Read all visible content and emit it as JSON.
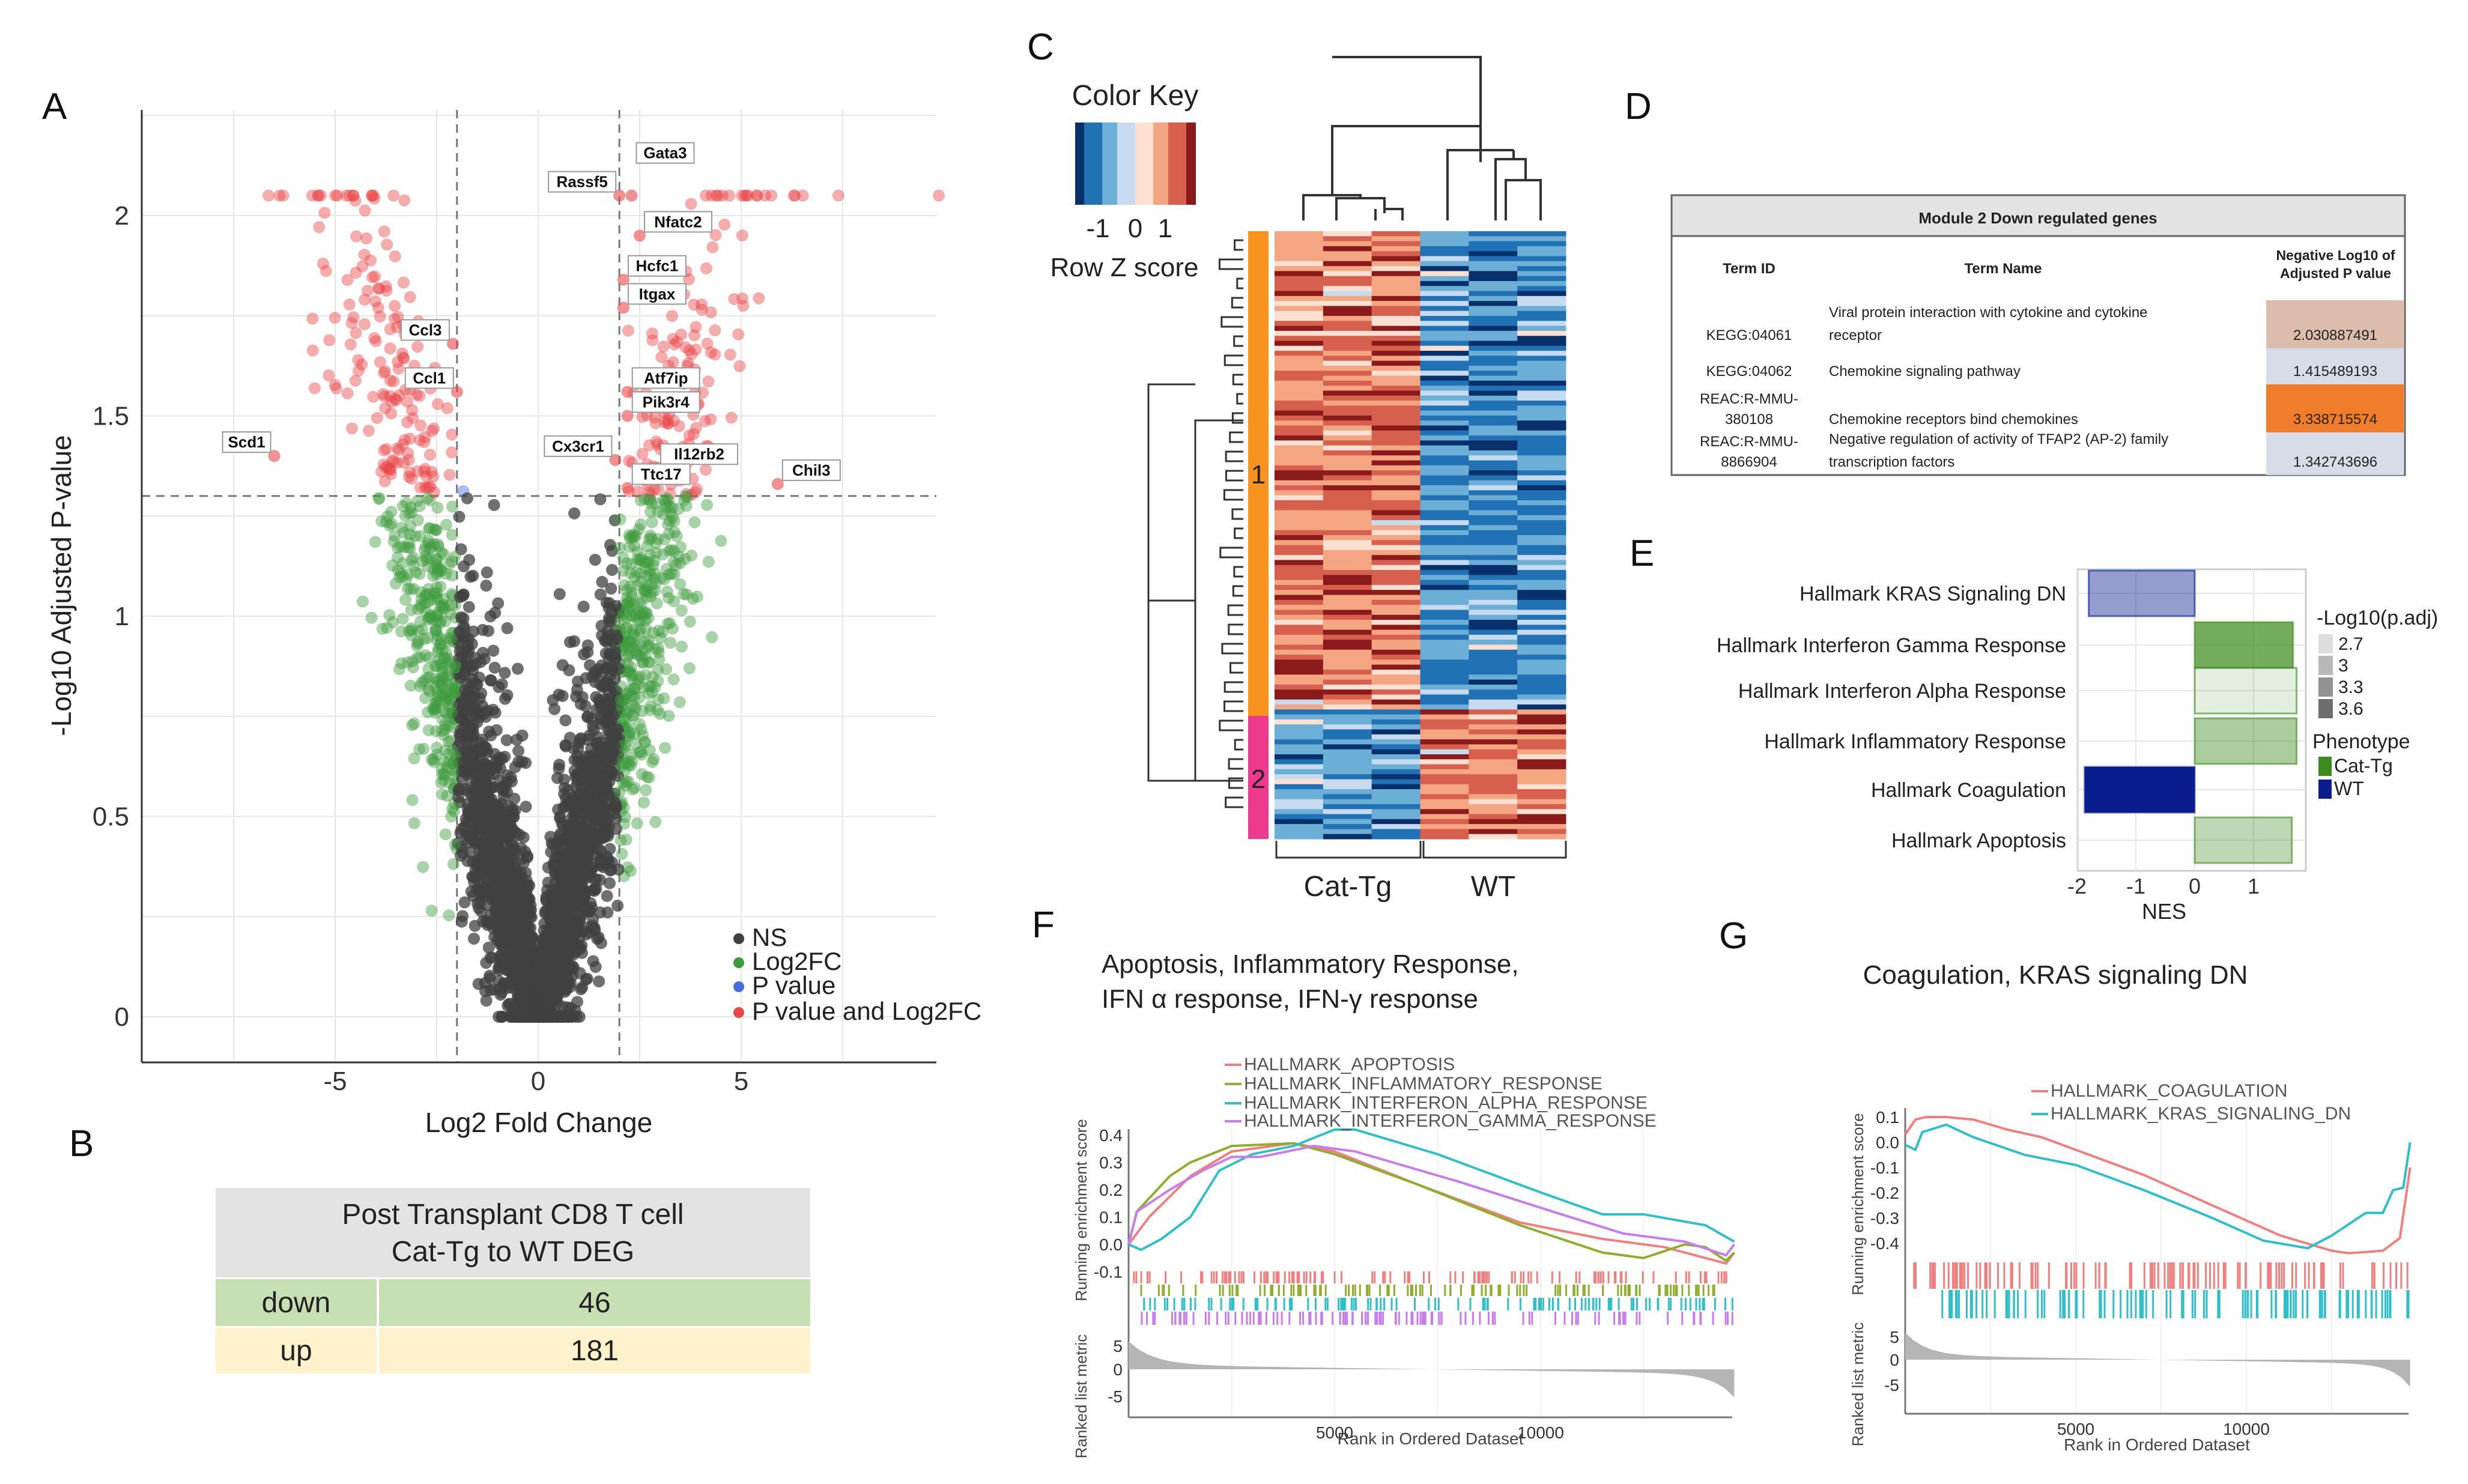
{
  "panel_labels": [
    "A",
    "B",
    "C",
    "D",
    "E",
    "F",
    "G"
  ],
  "chart_data": [
    {
      "id": "A",
      "type": "scatter",
      "title": "",
      "xlabel": "Log2 Fold Change",
      "ylabel": "-Log10 Adjusted P-value",
      "xlim": [
        -9.8,
        9.8
      ],
      "ylim": [
        -0.1,
        2.26
      ],
      "xticks": [
        "-5",
        "0",
        "5"
      ],
      "yticks": [
        "0",
        "0.5",
        "1",
        "1.5",
        "2"
      ],
      "thresholds": {
        "log2fc": 2,
        "neg_log10_padj": 1.3
      },
      "legend": {
        "position": "bottom-right",
        "entries": [
          {
            "label": "NS",
            "color": "#404040"
          },
          {
            "label": "Log2FC",
            "color": "#3f9b3f"
          },
          {
            "label": "P value",
            "color": "#4a6ae0"
          },
          {
            "label": "P value and Log2FC",
            "color": "#e8474a"
          }
        ]
      },
      "labeled_points": [
        {
          "gene": "Gata3",
          "x": 2.3,
          "y": 2.05
        },
        {
          "gene": "Rassf5",
          "x": 2.0,
          "y": 2.05
        },
        {
          "gene": "Nfatc2",
          "x": 2.5,
          "y": 1.95
        },
        {
          "gene": "Hcfc1",
          "x": 2.1,
          "y": 1.84
        },
        {
          "gene": "Itgax",
          "x": 2.1,
          "y": 1.77
        },
        {
          "gene": "Atf7ip",
          "x": 2.2,
          "y": 1.56
        },
        {
          "gene": "Pik3r4",
          "x": 2.2,
          "y": 1.5
        },
        {
          "gene": "Cx3cr1",
          "x": 1.9,
          "y": 1.39
        },
        {
          "gene": "Il12rb2",
          "x": 2.9,
          "y": 1.37
        },
        {
          "gene": "Ttc17",
          "x": 2.2,
          "y": 1.32
        },
        {
          "gene": "Chil3",
          "x": 5.9,
          "y": 1.33
        },
        {
          "gene": "Ccl3",
          "x": -2.1,
          "y": 1.68
        },
        {
          "gene": "Ccl1",
          "x": -2.0,
          "y": 1.56
        },
        {
          "gene": "Scd1",
          "x": -6.5,
          "y": 1.4
        }
      ]
    },
    {
      "id": "B",
      "type": "table",
      "title_lines": [
        "Post Transplant CD8 T cell",
        "Cat-Tg to WT DEG"
      ],
      "rows": [
        {
          "direction": "down",
          "count": "46",
          "color": "#c6e0b4"
        },
        {
          "direction": "up",
          "count": "181",
          "color": "#fff2cc"
        }
      ]
    },
    {
      "id": "C",
      "type": "heatmap",
      "color_key_title": "Color Key",
      "color_key_ticks": [
        "-1",
        "0",
        "1"
      ],
      "color_key_label": "Row Z score",
      "columns": [
        "Cat-Tg",
        "Cat-Tg",
        "Cat-Tg",
        "WT",
        "WT",
        "WT"
      ],
      "column_groups": [
        "Cat-Tg",
        "WT"
      ],
      "modules": [
        {
          "label": "1",
          "color": "#f7931e",
          "rows": 96,
          "pattern": "high in Cat-Tg, low in WT"
        },
        {
          "label": "2",
          "color": "#ec3a8f",
          "rows": 26,
          "pattern": "low in Cat-Tg, high in WT"
        }
      ]
    },
    {
      "id": "D",
      "type": "table",
      "title": "Module 2 Down regulated genes",
      "columns": [
        "Term ID",
        "Term Name",
        "Negative Log10 of Adjusted P value"
      ],
      "rows": [
        {
          "id_lines": [
            "KEGG:04061"
          ],
          "name_lines": [
            "Viral protein interaction with cytokine and cytokine",
            "receptor"
          ],
          "value": "2.030887491",
          "color": "#dcbcaa"
        },
        {
          "id_lines": [
            "KEGG:04062"
          ],
          "name_lines": [
            "Chemokine signaling pathway"
          ],
          "value": "1.415489193",
          "color": "#d7dce8"
        },
        {
          "id_lines": [
            "REAC:R-MMU-",
            "380108"
          ],
          "name_lines": [
            "Chemokine receptors bind chemokines"
          ],
          "value": "3.338715574",
          "color": "#ef7d2c"
        },
        {
          "id_lines": [
            "REAC:R-MMU-",
            "8866904"
          ],
          "name_lines": [
            "Negative regulation of activity of TFAP2 (AP-2) family",
            "transcription factors"
          ],
          "value": "1.342743696",
          "color": "#d7dce8"
        }
      ]
    },
    {
      "id": "E",
      "type": "bar",
      "orientation": "horizontal",
      "xlabel": "NES",
      "xlim": [
        -2,
        1.9
      ],
      "xticks": [
        "-2",
        "-1",
        "0",
        "1"
      ],
      "categories": [
        "Hallmark KRAS Signaling DN",
        "Hallmark Interferon Gamma Response",
        "Hallmark Interferon Alpha Response",
        "Hallmark Inflammatory Response",
        "Hallmark Coagulation",
        "Hallmark Apoptosis"
      ],
      "values": [
        -1.8,
        1.67,
        1.73,
        1.73,
        -1.87,
        1.65
      ],
      "neg_log10_padj": [
        3.0,
        3.3,
        2.7,
        3.0,
        3.6,
        2.9
      ],
      "phenotype": [
        "WT",
        "Cat-Tg",
        "Cat-Tg",
        "Cat-Tg",
        "WT",
        "Cat-Tg"
      ],
      "legend": {
        "size_title": "-Log10(p.adj)",
        "size_values": [
          "2.7",
          "3",
          "3.3",
          "3.6"
        ],
        "phenotype_title": "Phenotype",
        "phenotypes": [
          {
            "label": "Cat-Tg",
            "color": "#3d8b1f"
          },
          {
            "label": "WT",
            "color": "#0a1d8f"
          }
        ]
      }
    },
    {
      "id": "F",
      "type": "line",
      "title_lines": [
        "Apoptosis, Inflammatory Response,",
        "IFN α response, IFN-γ response"
      ],
      "ylabel": "Running enrichment score",
      "ylabel2": "Ranked list metric",
      "xlabel": "Rank in Ordered Dataset",
      "xlim": [
        0,
        14700
      ],
      "ylim": [
        -0.1,
        0.43
      ],
      "xticks": [
        "5000",
        "10000"
      ],
      "yticks": [
        "0.4",
        "0.3",
        "0.2",
        "0.1",
        "0.0",
        "-0.1"
      ],
      "yticks2": [
        "5",
        "0",
        "-5"
      ],
      "series": [
        {
          "name": "HALLMARK_APOPTOSIS",
          "color": "#f08080",
          "x": [
            0,
            500,
            1500,
            2500,
            4000,
            5000,
            7000,
            9500,
            11500,
            13000,
            14500,
            14700
          ],
          "y": [
            0,
            0.1,
            0.25,
            0.34,
            0.37,
            0.34,
            0.22,
            0.08,
            0.02,
            -0.01,
            -0.07,
            -0.03
          ]
        },
        {
          "name": "HALLMARK_INFLAMMATORY_RESPONSE",
          "color": "#8fae2e",
          "x": [
            0,
            200,
            1000,
            1500,
            2500,
            4000,
            5000,
            7000,
            9500,
            11500,
            12500,
            13500,
            14000,
            14500,
            14700
          ],
          "y": [
            0,
            0.12,
            0.25,
            0.3,
            0.36,
            0.37,
            0.33,
            0.22,
            0.07,
            -0.03,
            -0.05,
            0,
            -0.01,
            -0.06,
            -0.03
          ]
        },
        {
          "name": "HALLMARK_INTERFERON_ALPHA_RESPONSE",
          "color": "#2fbfc9",
          "x": [
            0,
            300,
            800,
            1500,
            2200,
            3000,
            4000,
            5000,
            5500,
            7500,
            10000,
            11500,
            12500,
            14000,
            14700
          ],
          "y": [
            0,
            -0.02,
            0.02,
            0.1,
            0.27,
            0.33,
            0.36,
            0.42,
            0.42,
            0.33,
            0.19,
            0.11,
            0.11,
            0.07,
            0.01
          ]
        },
        {
          "name": "HALLMARK_INTERFERON_GAMMA_RESPONSE",
          "color": "#c77dec",
          "x": [
            0,
            200,
            1000,
            1800,
            2500,
            3200,
            4500,
            5500,
            8000,
            10500,
            12000,
            13500,
            14500,
            14700
          ],
          "y": [
            0,
            0.12,
            0.2,
            0.27,
            0.32,
            0.32,
            0.36,
            0.34,
            0.23,
            0.11,
            0.04,
            0.01,
            -0.04,
            0.0
          ]
        }
      ]
    },
    {
      "id": "G",
      "type": "line",
      "title": "Coagulation, KRAS signaling DN",
      "ylabel": "Running enrichment score",
      "ylabel2": "Ranked list metric",
      "xlabel": "Rank in Ordered Dataset",
      "xlim": [
        0,
        14800
      ],
      "ylim": [
        -0.45,
        0.12
      ],
      "xticks": [
        "5000",
        "10000"
      ],
      "yticks": [
        "0.1",
        "0.0",
        "-0.1",
        "-0.2",
        "-0.3",
        "-0.4"
      ],
      "yticks2": [
        "5",
        "0",
        "-5"
      ],
      "series": [
        {
          "name": "HALLMARK_COAGULATION",
          "color": "#f08080",
          "x": [
            0,
            300,
            600,
            1200,
            2000,
            3000,
            4000,
            5000,
            7000,
            9000,
            11000,
            12500,
            13000,
            14000,
            14500,
            14800
          ],
          "y": [
            0.03,
            0.09,
            0.1,
            0.1,
            0.09,
            0.05,
            0.02,
            -0.03,
            -0.13,
            -0.25,
            -0.37,
            -0.43,
            -0.44,
            -0.43,
            -0.38,
            -0.1
          ]
        },
        {
          "name": "HALLMARK_KRAS_SIGNALING_DN",
          "color": "#2fbfc9",
          "x": [
            0,
            300,
            500,
            1200,
            2000,
            3500,
            5000,
            7000,
            9000,
            10500,
            11800,
            12500,
            13500,
            14000,
            14300,
            14600,
            14800
          ],
          "y": [
            -0.01,
            -0.03,
            0.04,
            0.07,
            0.02,
            -0.05,
            -0.09,
            -0.19,
            -0.3,
            -0.39,
            -0.42,
            -0.37,
            -0.28,
            -0.28,
            -0.19,
            -0.18,
            0.0
          ]
        }
      ]
    }
  ]
}
